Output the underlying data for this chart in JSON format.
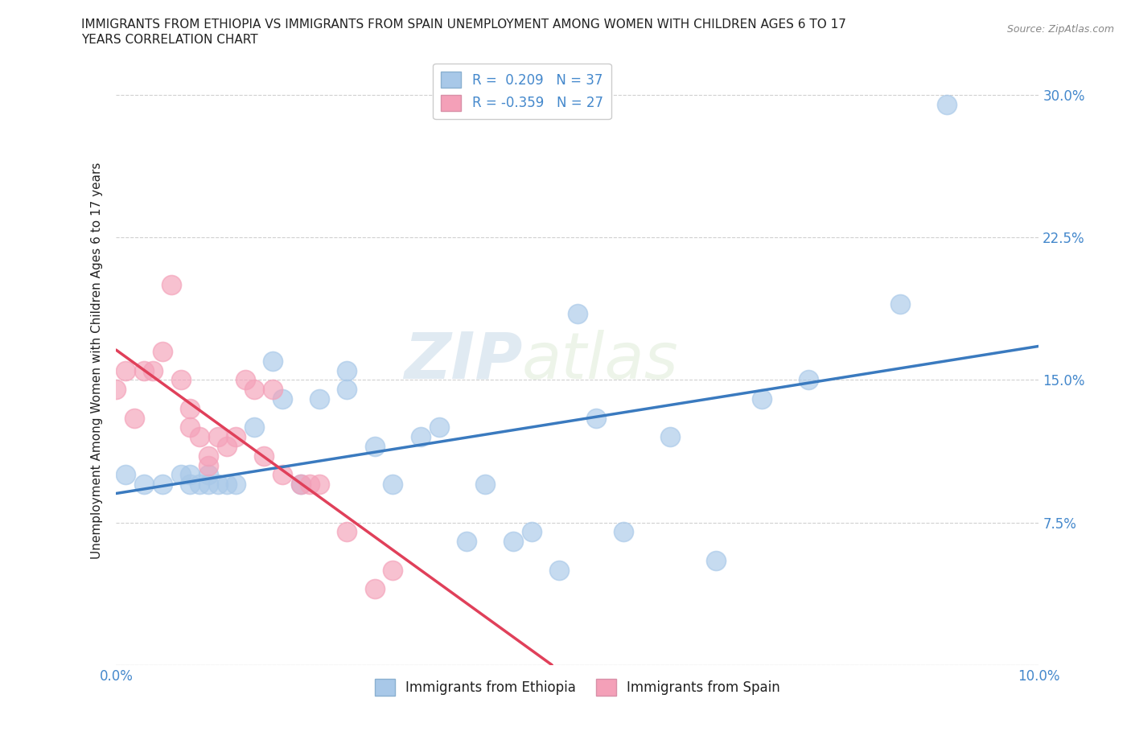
{
  "title_line1": "IMMIGRANTS FROM ETHIOPIA VS IMMIGRANTS FROM SPAIN UNEMPLOYMENT AMONG WOMEN WITH CHILDREN AGES 6 TO 17",
  "title_line2": "YEARS CORRELATION CHART",
  "source": "Source: ZipAtlas.com",
  "ylabel": "Unemployment Among Women with Children Ages 6 to 17 years",
  "xlim": [
    0.0,
    0.1
  ],
  "ylim": [
    0.0,
    0.32
  ],
  "xticks": [
    0.0,
    0.025,
    0.05,
    0.075,
    0.1
  ],
  "xticklabels": [
    "0.0%",
    "",
    "",
    "",
    "10.0%"
  ],
  "yticks": [
    0.075,
    0.15,
    0.225,
    0.3
  ],
  "yticklabels": [
    "7.5%",
    "15.0%",
    "22.5%",
    "30.0%"
  ],
  "r_ethiopia": 0.209,
  "n_ethiopia": 37,
  "r_spain": -0.359,
  "n_spain": 27,
  "color_ethiopia": "#a8c8e8",
  "color_spain": "#f4a0b8",
  "ethiopia_x": [
    0.001,
    0.003,
    0.005,
    0.007,
    0.008,
    0.008,
    0.009,
    0.01,
    0.01,
    0.011,
    0.012,
    0.013,
    0.015,
    0.017,
    0.018,
    0.02,
    0.022,
    0.025,
    0.025,
    0.028,
    0.03,
    0.033,
    0.035,
    0.038,
    0.04,
    0.043,
    0.045,
    0.048,
    0.05,
    0.052,
    0.055,
    0.06,
    0.065,
    0.07,
    0.075,
    0.085,
    0.09
  ],
  "ethiopia_y": [
    0.1,
    0.095,
    0.095,
    0.1,
    0.095,
    0.1,
    0.095,
    0.095,
    0.1,
    0.095,
    0.095,
    0.095,
    0.125,
    0.16,
    0.14,
    0.095,
    0.14,
    0.155,
    0.145,
    0.115,
    0.095,
    0.12,
    0.125,
    0.065,
    0.095,
    0.065,
    0.07,
    0.05,
    0.185,
    0.13,
    0.07,
    0.12,
    0.055,
    0.14,
    0.15,
    0.19,
    0.295
  ],
  "spain_x": [
    0.0,
    0.001,
    0.002,
    0.003,
    0.004,
    0.005,
    0.006,
    0.007,
    0.008,
    0.008,
    0.009,
    0.01,
    0.01,
    0.011,
    0.012,
    0.013,
    0.014,
    0.015,
    0.016,
    0.017,
    0.018,
    0.02,
    0.021,
    0.022,
    0.025,
    0.028,
    0.03
  ],
  "spain_y": [
    0.145,
    0.155,
    0.13,
    0.155,
    0.155,
    0.165,
    0.2,
    0.15,
    0.135,
    0.125,
    0.12,
    0.105,
    0.11,
    0.12,
    0.115,
    0.12,
    0.15,
    0.145,
    0.11,
    0.145,
    0.1,
    0.095,
    0.095,
    0.095,
    0.07,
    0.04,
    0.05
  ],
  "watermark_zip": "ZIP",
  "watermark_atlas": "atlas",
  "background_color": "#ffffff",
  "grid_color": "#d0d0d0",
  "line_eth_color": "#3a7abf",
  "line_spa_color": "#e0405a"
}
